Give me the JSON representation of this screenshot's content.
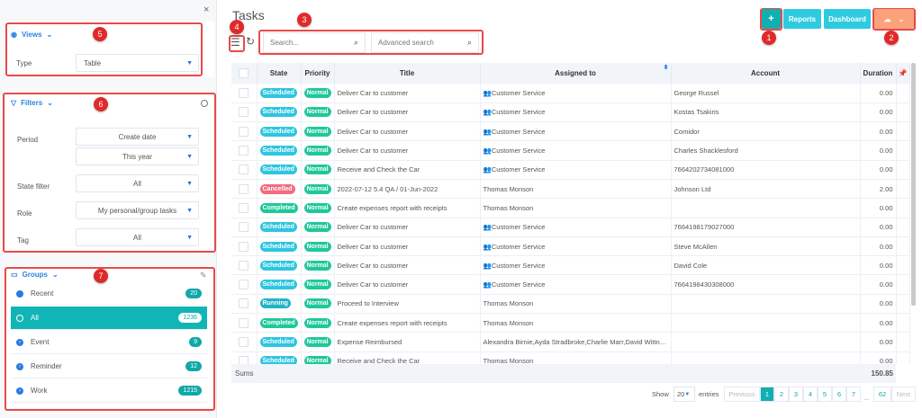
{
  "sidebar": {
    "close_label": "×",
    "views": {
      "title": "Views",
      "type_label": "Type",
      "type_value": "Table"
    },
    "filters": {
      "title": "Filters",
      "period_label": "Period",
      "period_value": "Create date",
      "period_range": "This year",
      "state_label": "State filter",
      "state_value": "All",
      "role_label": "Role",
      "role_value": "My personal/group tasks",
      "tag_label": "Tag",
      "tag_value": "All"
    },
    "groups": {
      "title": "Groups",
      "items": [
        {
          "label": "Recent",
          "count": "20",
          "icon": "clock-icon"
        },
        {
          "label": "All",
          "count": "1236",
          "icon": "circle-icon",
          "active": true
        },
        {
          "label": "Event",
          "count": "9",
          "icon": "chevron-right-icon"
        },
        {
          "label": "Reminder",
          "count": "12",
          "icon": "chevron-right-icon"
        },
        {
          "label": "Work",
          "count": "1215",
          "icon": "chevron-right-icon"
        }
      ]
    }
  },
  "callouts": [
    "1",
    "2",
    "3",
    "4",
    "5",
    "6",
    "7"
  ],
  "header": {
    "title": "Tasks",
    "add_label": "+",
    "reports_label": "Reports",
    "dashboard_label": "Dashboard"
  },
  "search": {
    "placeholder": "Search...",
    "advanced_placeholder": "Advanced search"
  },
  "table": {
    "columns": [
      "State",
      "Priority",
      "Title",
      "Assigned to",
      "Account",
      "Duration"
    ],
    "rows": [
      {
        "state": "Scheduled",
        "priority": "Normal",
        "title": "Deliver Car to customer",
        "assigned": "Customer Service",
        "group": true,
        "account": "George Russel",
        "duration": "0.00"
      },
      {
        "state": "Scheduled",
        "priority": "Normal",
        "title": "Deliver Car to customer",
        "assigned": "Customer Service",
        "group": true,
        "account": "Kostas Tsakiris",
        "duration": "0.00"
      },
      {
        "state": "Scheduled",
        "priority": "Normal",
        "title": "Deliver Car to customer",
        "assigned": "Customer Service",
        "group": true,
        "account": "Comidor",
        "duration": "0.00"
      },
      {
        "state": "Scheduled",
        "priority": "Normal",
        "title": "Deliver Car to customer",
        "assigned": "Customer Service",
        "group": true,
        "account": "Charles Shacklesford",
        "duration": "0.00"
      },
      {
        "state": "Scheduled",
        "priority": "Normal",
        "title": "Receive and Check the Car",
        "assigned": "Customer Service",
        "group": true,
        "account": "7664202734081000",
        "duration": "0.00"
      },
      {
        "state": "Cancelled",
        "priority": "Normal",
        "title": "2022-07-12 5.4 QA / 01-Jun-2022",
        "assigned": "Thomas Monson",
        "group": false,
        "account": "Johnson Ltd",
        "duration": "2.00"
      },
      {
        "state": "Completed",
        "priority": "Normal",
        "title": "Create expenses report with receipts",
        "assigned": "Thomas Monson",
        "group": false,
        "account": "",
        "duration": "0.00"
      },
      {
        "state": "Scheduled",
        "priority": "Normal",
        "title": "Deliver Car to customer",
        "assigned": "Customer Service",
        "group": true,
        "account": "7664198179027000",
        "duration": "0.00"
      },
      {
        "state": "Scheduled",
        "priority": "Normal",
        "title": "Deliver Car to customer",
        "assigned": "Customer Service",
        "group": true,
        "account": "Steve McAllen",
        "duration": "0.00"
      },
      {
        "state": "Scheduled",
        "priority": "Normal",
        "title": "Deliver Car to customer",
        "assigned": "Customer Service",
        "group": true,
        "account": "David Cole",
        "duration": "0.00"
      },
      {
        "state": "Scheduled",
        "priority": "Normal",
        "title": "Deliver Car to customer",
        "assigned": "Customer Service",
        "group": true,
        "account": "7664198430308000",
        "duration": "0.00"
      },
      {
        "state": "Running",
        "priority": "Normal",
        "title": "Proceed to Interview",
        "assigned": "Thomas Monson",
        "group": false,
        "account": "",
        "duration": "0.00"
      },
      {
        "state": "Completed",
        "priority": "Normal",
        "title": "Create expenses report with receipts",
        "assigned": "Thomas Monson",
        "group": false,
        "account": "",
        "duration": "0.00"
      },
      {
        "state": "Scheduled",
        "priority": "Normal",
        "title": "Expense Reimbursed",
        "assigned": "Alexandra Birnie,Ayda Stradbroke,Charlie Marr,David Wittnom...",
        "group": false,
        "account": "",
        "duration": "0.00"
      },
      {
        "state": "Scheduled",
        "priority": "Normal",
        "title": "Receive and Check the Car",
        "assigned": "Thomas Monson",
        "group": false,
        "account": "",
        "duration": "0.00"
      }
    ],
    "sums_label": "Sums",
    "sums_total": "150.85"
  },
  "pagination": {
    "show_label": "Show",
    "entries_value": "20",
    "entries_label": "entries",
    "previous": "Previous",
    "pages": [
      "1",
      "2",
      "3",
      "4",
      "5",
      "6",
      "7"
    ],
    "ellipsis": "...",
    "last": "62",
    "next": "Next",
    "current": "1"
  },
  "colors": {
    "Scheduled": "#2ec5e0",
    "Normal": "#1fc89a",
    "Cancelled": "#f26b7c",
    "Completed": "#1fc89a",
    "Running": "#21b3c6",
    "teal": "#11b5b5",
    "cyan": "#2ecbe0",
    "orange": "#fba27a",
    "red": "#e74a4a"
  }
}
